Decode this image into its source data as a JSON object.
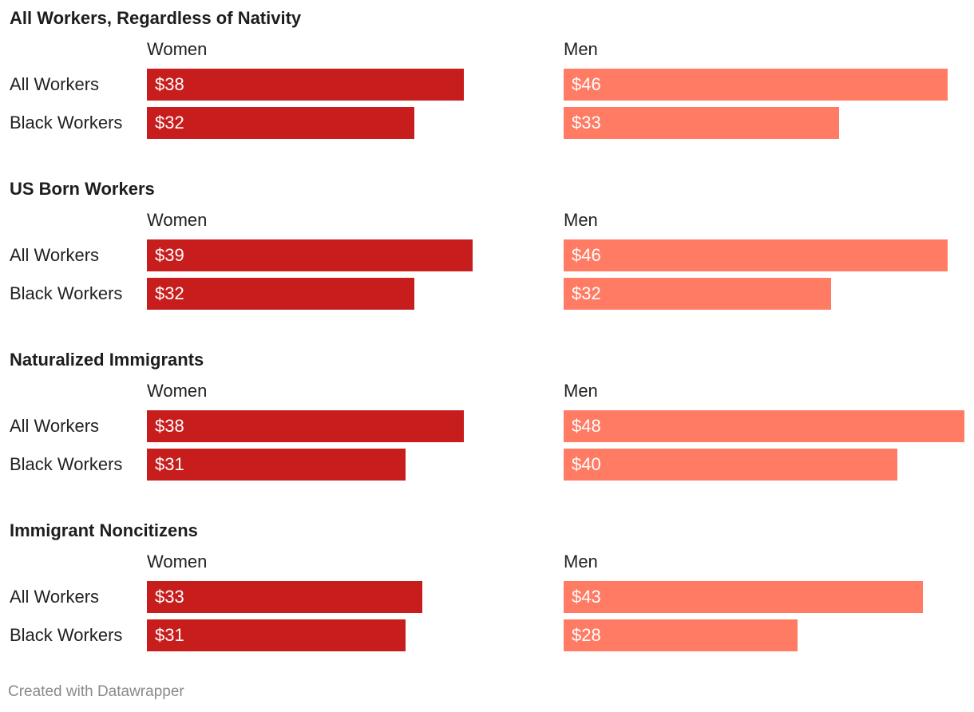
{
  "colors": {
    "women": "#c71e1d",
    "men": "#ff7b63"
  },
  "footer": "Created with Datawrapper",
  "chart_data": {
    "type": "bar",
    "orientation": "horizontal",
    "value_prefix": "$",
    "columns": [
      "Women",
      "Men"
    ],
    "rows": [
      "All Workers",
      "Black Workers"
    ],
    "xlim": [
      0,
      48
    ],
    "panels": [
      {
        "title": "All Workers, Regardless of Nativity",
        "series": [
          {
            "name": "Women",
            "values": [
              38,
              32
            ],
            "labels": [
              "$38",
              "$32"
            ]
          },
          {
            "name": "Men",
            "values": [
              46,
              33
            ],
            "labels": [
              "$46",
              "$33"
            ]
          }
        ]
      },
      {
        "title": "US Born Workers",
        "series": [
          {
            "name": "Women",
            "values": [
              39,
              32
            ],
            "labels": [
              "$39",
              "$32"
            ]
          },
          {
            "name": "Men",
            "values": [
              46,
              32
            ],
            "labels": [
              "$46",
              "$32"
            ]
          }
        ]
      },
      {
        "title": "Naturalized Immigrants",
        "series": [
          {
            "name": "Women",
            "values": [
              38,
              31
            ],
            "labels": [
              "$38",
              "$31"
            ]
          },
          {
            "name": "Men",
            "values": [
              48,
              40
            ],
            "labels": [
              "$48",
              "$40"
            ]
          }
        ]
      },
      {
        "title": "Immigrant Noncitizens",
        "series": [
          {
            "name": "Women",
            "values": [
              33,
              31
            ],
            "labels": [
              "$33",
              "$31"
            ]
          },
          {
            "name": "Men",
            "values": [
              43,
              28
            ],
            "labels": [
              "$43",
              "$28"
            ]
          }
        ]
      }
    ]
  }
}
